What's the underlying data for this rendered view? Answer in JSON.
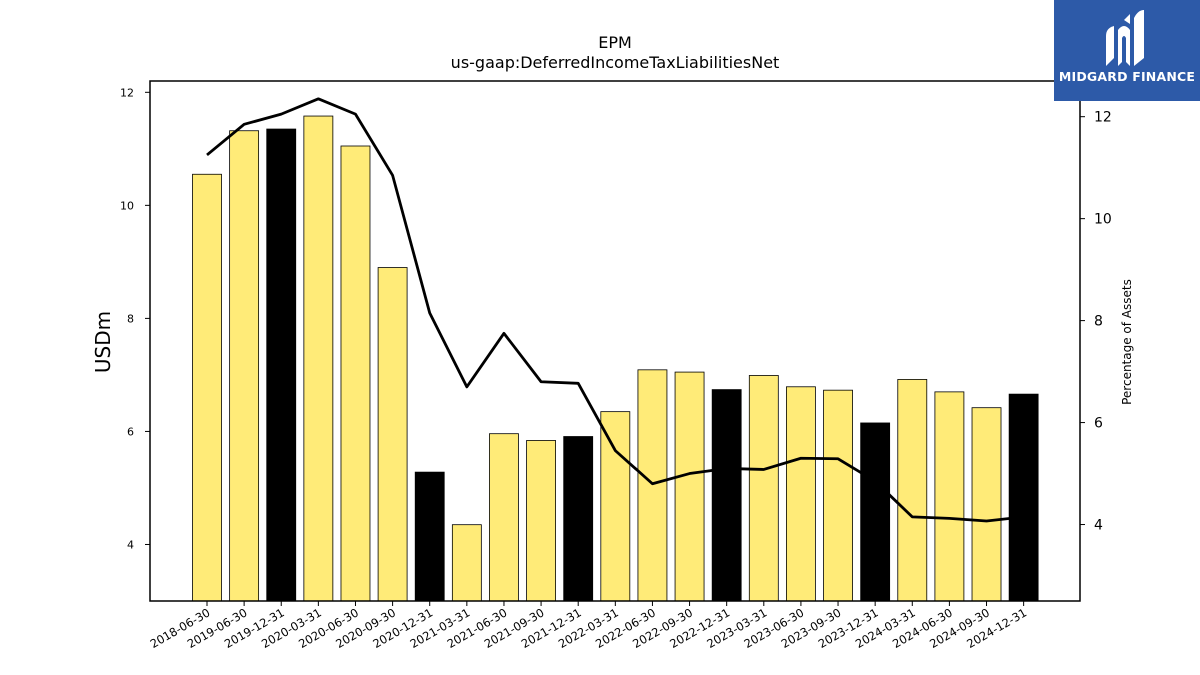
{
  "chart_data": {
    "type": "bar",
    "title": "EPM",
    "subtitle": "us-gaap:DeferredIncomeTaxLiabilitiesNet",
    "ylabel": "USDm",
    "y2label": "Percentage of Assets",
    "ylim": [
      3.0,
      12.2
    ],
    "y2lim": [
      2.5,
      12.7
    ],
    "yticks": [
      4,
      6,
      8,
      10,
      12
    ],
    "y2ticks": [
      4,
      6,
      8,
      10,
      12
    ],
    "categories": [
      "2018-06-30",
      "2019-06-30",
      "2019-12-31",
      "2020-03-31",
      "2020-06-30",
      "2020-09-30",
      "2020-12-31",
      "2021-03-31",
      "2021-06-30",
      "2021-09-30",
      "2021-12-31",
      "2022-03-31",
      "2022-06-30",
      "2022-09-30",
      "2022-12-31",
      "2023-03-31",
      "2023-06-30",
      "2023-09-30",
      "2023-12-31",
      "2024-03-31",
      "2024-06-30",
      "2024-09-30",
      "2024-12-31"
    ],
    "series": [
      {
        "type": "bar",
        "values": [
          10.55,
          11.32,
          11.35,
          11.58,
          11.05,
          8.9,
          5.28,
          4.35,
          5.96,
          5.84,
          5.91,
          6.35,
          7.09,
          7.05,
          6.74,
          6.99,
          6.79,
          6.73,
          6.15,
          6.92,
          6.7,
          6.42,
          6.66
        ],
        "highlight": [
          false,
          false,
          true,
          false,
          false,
          false,
          true,
          false,
          false,
          false,
          true,
          false,
          false,
          false,
          true,
          false,
          false,
          false,
          true,
          false,
          false,
          false,
          true
        ]
      },
      {
        "type": "line",
        "axis": "right",
        "values": [
          11.25,
          11.85,
          12.05,
          12.35,
          12.05,
          10.85,
          8.15,
          6.7,
          7.75,
          6.8,
          6.77,
          5.45,
          4.8,
          5.0,
          5.1,
          5.08,
          5.3,
          5.29,
          4.85,
          4.15,
          4.12,
          4.07,
          4.15
        ]
      }
    ],
    "colors": {
      "bar": "#ffeb78",
      "bar_highlight": "#000000",
      "line": "#000000"
    },
    "grid": false
  },
  "logo": {
    "text": "MIDGARD FINANCE",
    "background": "#2d5aa8"
  }
}
